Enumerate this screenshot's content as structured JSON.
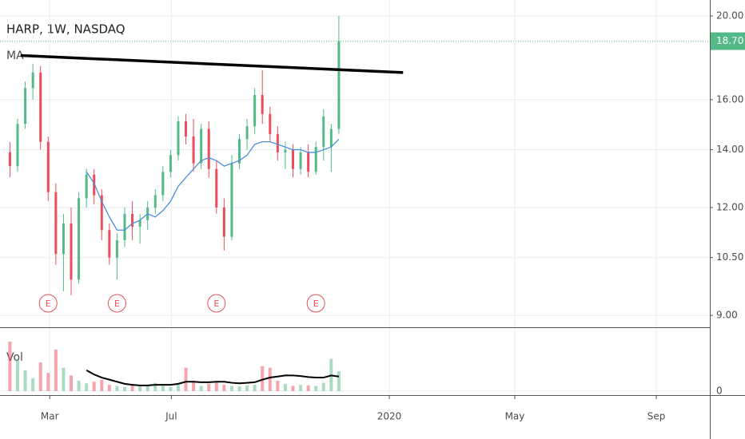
{
  "chart_data": {
    "type": "candlestick",
    "title": "HARP, 1W, NASDAQ",
    "indicator_label": "MA",
    "volume_label": "Vol",
    "log_scale": true,
    "grid": true,
    "up_color": "#53b987",
    "down_color": "#eb4d5c",
    "ma_color": "#4a90d9",
    "vol_ma_color": "#000000",
    "open": [
      13.9,
      13.4,
      15.0,
      16.5,
      17.2,
      14.3,
      12.5,
      10.6,
      11.5,
      9.9,
      12.3,
      13.1,
      12.4,
      11.3,
      10.5,
      11.0,
      11.8,
      11.4,
      11.6,
      12.0,
      12.4,
      13.2,
      13.8,
      15.1,
      14.5,
      13.5,
      14.8,
      13.3,
      12.0,
      11.1,
      13.5,
      14.4,
      14.9,
      16.2,
      15.4,
      14.6,
      13.9,
      14.0,
      13.3,
      13.9,
      13.2,
      14.1,
      14.1,
      14.8
    ],
    "high": [
      14.3,
      15.2,
      16.8,
      17.6,
      17.5,
      14.5,
      12.8,
      11.8,
      12.0,
      12.5,
      13.3,
      13.3,
      12.6,
      11.5,
      11.2,
      12.0,
      12.2,
      11.8,
      12.2,
      12.6,
      13.4,
      14.0,
      15.3,
      15.4,
      15.2,
      15.0,
      15.1,
      13.6,
      12.3,
      13.8,
      14.6,
      15.2,
      16.5,
      17.3,
      15.7,
      14.9,
      14.3,
      14.2,
      14.1,
      14.2,
      14.3,
      15.6,
      15.0,
      20.0
    ],
    "low": [
      13.0,
      13.2,
      14.8,
      16.0,
      14.0,
      12.2,
      10.3,
      9.6,
      9.5,
      9.8,
      12.0,
      12.1,
      11.0,
      10.3,
      9.9,
      10.8,
      11.0,
      10.9,
      11.3,
      11.8,
      12.2,
      13.0,
      13.6,
      14.2,
      13.2,
      13.3,
      13.0,
      11.8,
      10.7,
      11.0,
      13.3,
      14.0,
      14.6,
      15.0,
      14.3,
      13.6,
      13.3,
      13.0,
      13.1,
      13.0,
      13.1,
      13.6,
      13.2,
      14.6
    ],
    "close": [
      13.4,
      15.0,
      16.5,
      17.2,
      14.3,
      12.5,
      10.6,
      11.5,
      9.9,
      12.3,
      13.1,
      12.4,
      11.3,
      10.5,
      11.0,
      11.8,
      11.4,
      11.6,
      12.0,
      12.4,
      13.2,
      13.8,
      15.1,
      14.5,
      13.5,
      14.8,
      13.3,
      12.0,
      11.1,
      13.5,
      14.4,
      14.9,
      16.2,
      15.4,
      14.6,
      13.9,
      14.0,
      13.3,
      13.9,
      13.2,
      14.1,
      15.3,
      14.8,
      18.7
    ],
    "ma": [
      null,
      null,
      null,
      null,
      null,
      null,
      null,
      null,
      null,
      null,
      13.2,
      12.8,
      12.2,
      11.7,
      11.3,
      11.3,
      11.5,
      11.6,
      11.8,
      11.7,
      11.9,
      12.2,
      12.7,
      13.0,
      13.3,
      13.6,
      13.7,
      13.6,
      13.4,
      13.5,
      13.6,
      13.8,
      14.2,
      14.3,
      14.3,
      14.2,
      14.1,
      14.0,
      14.0,
      13.9,
      13.9,
      14.0,
      14.1,
      14.4
    ],
    "volume": [
      95,
      60,
      40,
      25,
      55,
      35,
      80,
      45,
      30,
      20,
      15,
      18,
      22,
      12,
      10,
      8,
      14,
      9,
      11,
      16,
      10,
      8,
      12,
      45,
      20,
      10,
      14,
      18,
      12,
      10,
      9,
      11,
      12,
      48,
      45,
      20,
      14,
      10,
      12,
      11,
      10,
      16,
      62,
      38
    ],
    "vol_ma": [
      null,
      null,
      null,
      null,
      null,
      null,
      null,
      null,
      null,
      null,
      40,
      32,
      26,
      22,
      18,
      14,
      12,
      11,
      11,
      12,
      12,
      12,
      14,
      18,
      18,
      17,
      17,
      18,
      18,
      16,
      15,
      16,
      17,
      22,
      26,
      28,
      30,
      30,
      29,
      27,
      26,
      26,
      30,
      28
    ],
    "ylim": [
      8.72,
      20.87
    ],
    "yticks": [
      {
        "value": 9,
        "label": "9.00"
      },
      {
        "value": 10.5,
        "label": "10.50"
      },
      {
        "value": 12,
        "label": "12.00"
      },
      {
        "value": 14,
        "label": "14.00"
      },
      {
        "value": 16,
        "label": "16.00"
      },
      {
        "value": 20,
        "label": "20.00"
      }
    ],
    "vol_ylim": [
      0,
      115
    ],
    "vol_yticks": [
      0
    ],
    "xlim": [
      -1.3,
      91.5
    ],
    "xticks": [
      {
        "value": 5.2,
        "label": "Mar"
      },
      {
        "value": 21.1,
        "label": "Jul"
      },
      {
        "value": 49.6,
        "label": "2020"
      },
      {
        "value": 66.0,
        "label": "May"
      },
      {
        "value": 84.5,
        "label": "Sep"
      }
    ],
    "last_price": 18.7,
    "last_price_label": "18.70",
    "trendline": {
      "x": [
        1.4,
        51.4
      ],
      "y": [
        18.0,
        17.2
      ]
    },
    "earnings": [
      {
        "index": 5,
        "label": "E"
      },
      {
        "index": 14,
        "label": "E"
      },
      {
        "index": 27,
        "label": "E"
      },
      {
        "index": 40,
        "label": "E"
      }
    ]
  }
}
